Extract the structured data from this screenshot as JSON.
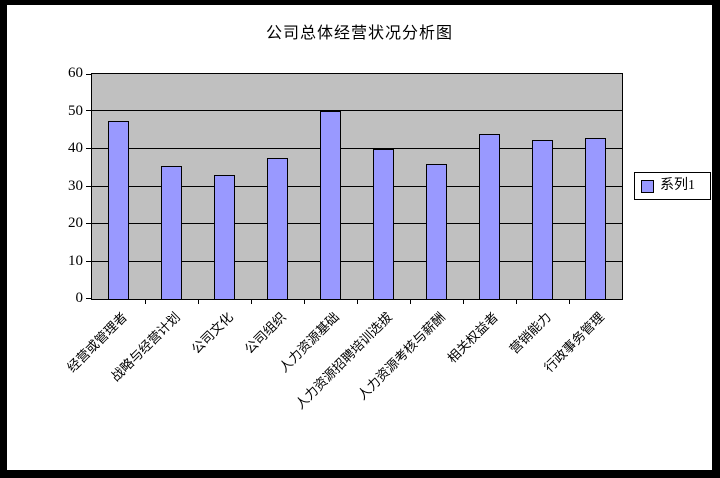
{
  "chart_data": {
    "type": "bar",
    "title": "公司总体经营状况分析图",
    "xlabel": "",
    "ylabel": "",
    "categories": [
      "经营或管理者",
      "战略与经营计划",
      "公司文化",
      "公司组织",
      "人力资源基础",
      "人力资源招聘培训选拔",
      "人力资源考核与薪酬",
      "相关权益者",
      "营销能力",
      "行政事务管理"
    ],
    "series": [
      {
        "name": "系列1",
        "values": [
          47.5,
          35.5,
          33,
          37.5,
          50,
          40,
          36,
          44,
          42.5,
          43
        ]
      }
    ],
    "ylim": [
      0,
      60
    ],
    "yticks": [
      0,
      10,
      20,
      30,
      40,
      50,
      60
    ],
    "grid": true,
    "legend_position": "right",
    "colors": {
      "bar_fill": "#9999ff",
      "bar_border": "#000000",
      "plot_bg": "#c0c0c0",
      "gridline": "#000000",
      "chart_bg": "#ffffff",
      "frame": "#000000"
    }
  }
}
